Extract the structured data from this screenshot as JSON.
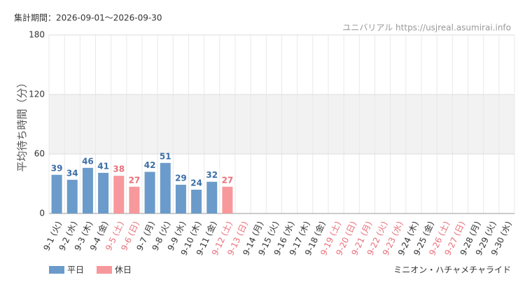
{
  "chart_data": {
    "type": "bar",
    "title": "集計期間：2026-09-01～2026-09-30",
    "source": "ユニバリアル  https://usjreal.asumirai.info",
    "ylabel": "平均待ち時間（分）",
    "footer": "ミニオン・ハチャメチャライド",
    "categories": [
      "9-1 (火)",
      "9-2 (水)",
      "9-3 (木)",
      "9-4 (金)",
      "9-5 (土)",
      "9-6 (日)",
      "9-7 (月)",
      "9-8 (火)",
      "9-9 (水)",
      "9-10 (木)",
      "9-11 (金)",
      "9-12 (土)",
      "9-13 (日)",
      "9-14 (月)",
      "9-15 (火)",
      "9-16 (水)",
      "9-17 (木)",
      "9-18 (金)",
      "9-19 (土)",
      "9-20 (日)",
      "9-21 (月)",
      "9-22 (火)",
      "9-23 (水)",
      "9-24 (木)",
      "9-25 (金)",
      "9-26 (土)",
      "9-27 (日)",
      "9-28 (月)",
      "9-29 (火)",
      "9-30 (水)"
    ],
    "category_colors": [
      "#333",
      "#333",
      "#333",
      "#333",
      "#e8707a",
      "#e8707a",
      "#333",
      "#333",
      "#333",
      "#333",
      "#333",
      "#e8707a",
      "#e8707a",
      "#333",
      "#333",
      "#333",
      "#333",
      "#333",
      "#e8707a",
      "#e8707a",
      "#e8707a",
      "#e8707a",
      "#e8707a",
      "#333",
      "#333",
      "#e8707a",
      "#e8707a",
      "#333",
      "#333",
      "#333"
    ],
    "series": [
      {
        "name": "平日",
        "color": "#6b9bca",
        "label_color": "#3d6fa6",
        "values": [
          39,
          34,
          46,
          41,
          null,
          null,
          42,
          51,
          29,
          24,
          32,
          null,
          null,
          null,
          null,
          null,
          null,
          null,
          null,
          null,
          null,
          null,
          null,
          null,
          null,
          null,
          null,
          null,
          null,
          null
        ]
      },
      {
        "name": "休日",
        "color": "#f7989c",
        "label_color": "#e8707a",
        "values": [
          null,
          null,
          null,
          null,
          38,
          27,
          null,
          null,
          null,
          null,
          null,
          27,
          null,
          null,
          null,
          null,
          null,
          null,
          null,
          null,
          null,
          null,
          null,
          null,
          null,
          null,
          null,
          null,
          null,
          null
        ]
      }
    ],
    "ylim": [
      0,
      180
    ],
    "yticks": [
      0,
      60,
      120,
      180
    ],
    "grid": true
  }
}
